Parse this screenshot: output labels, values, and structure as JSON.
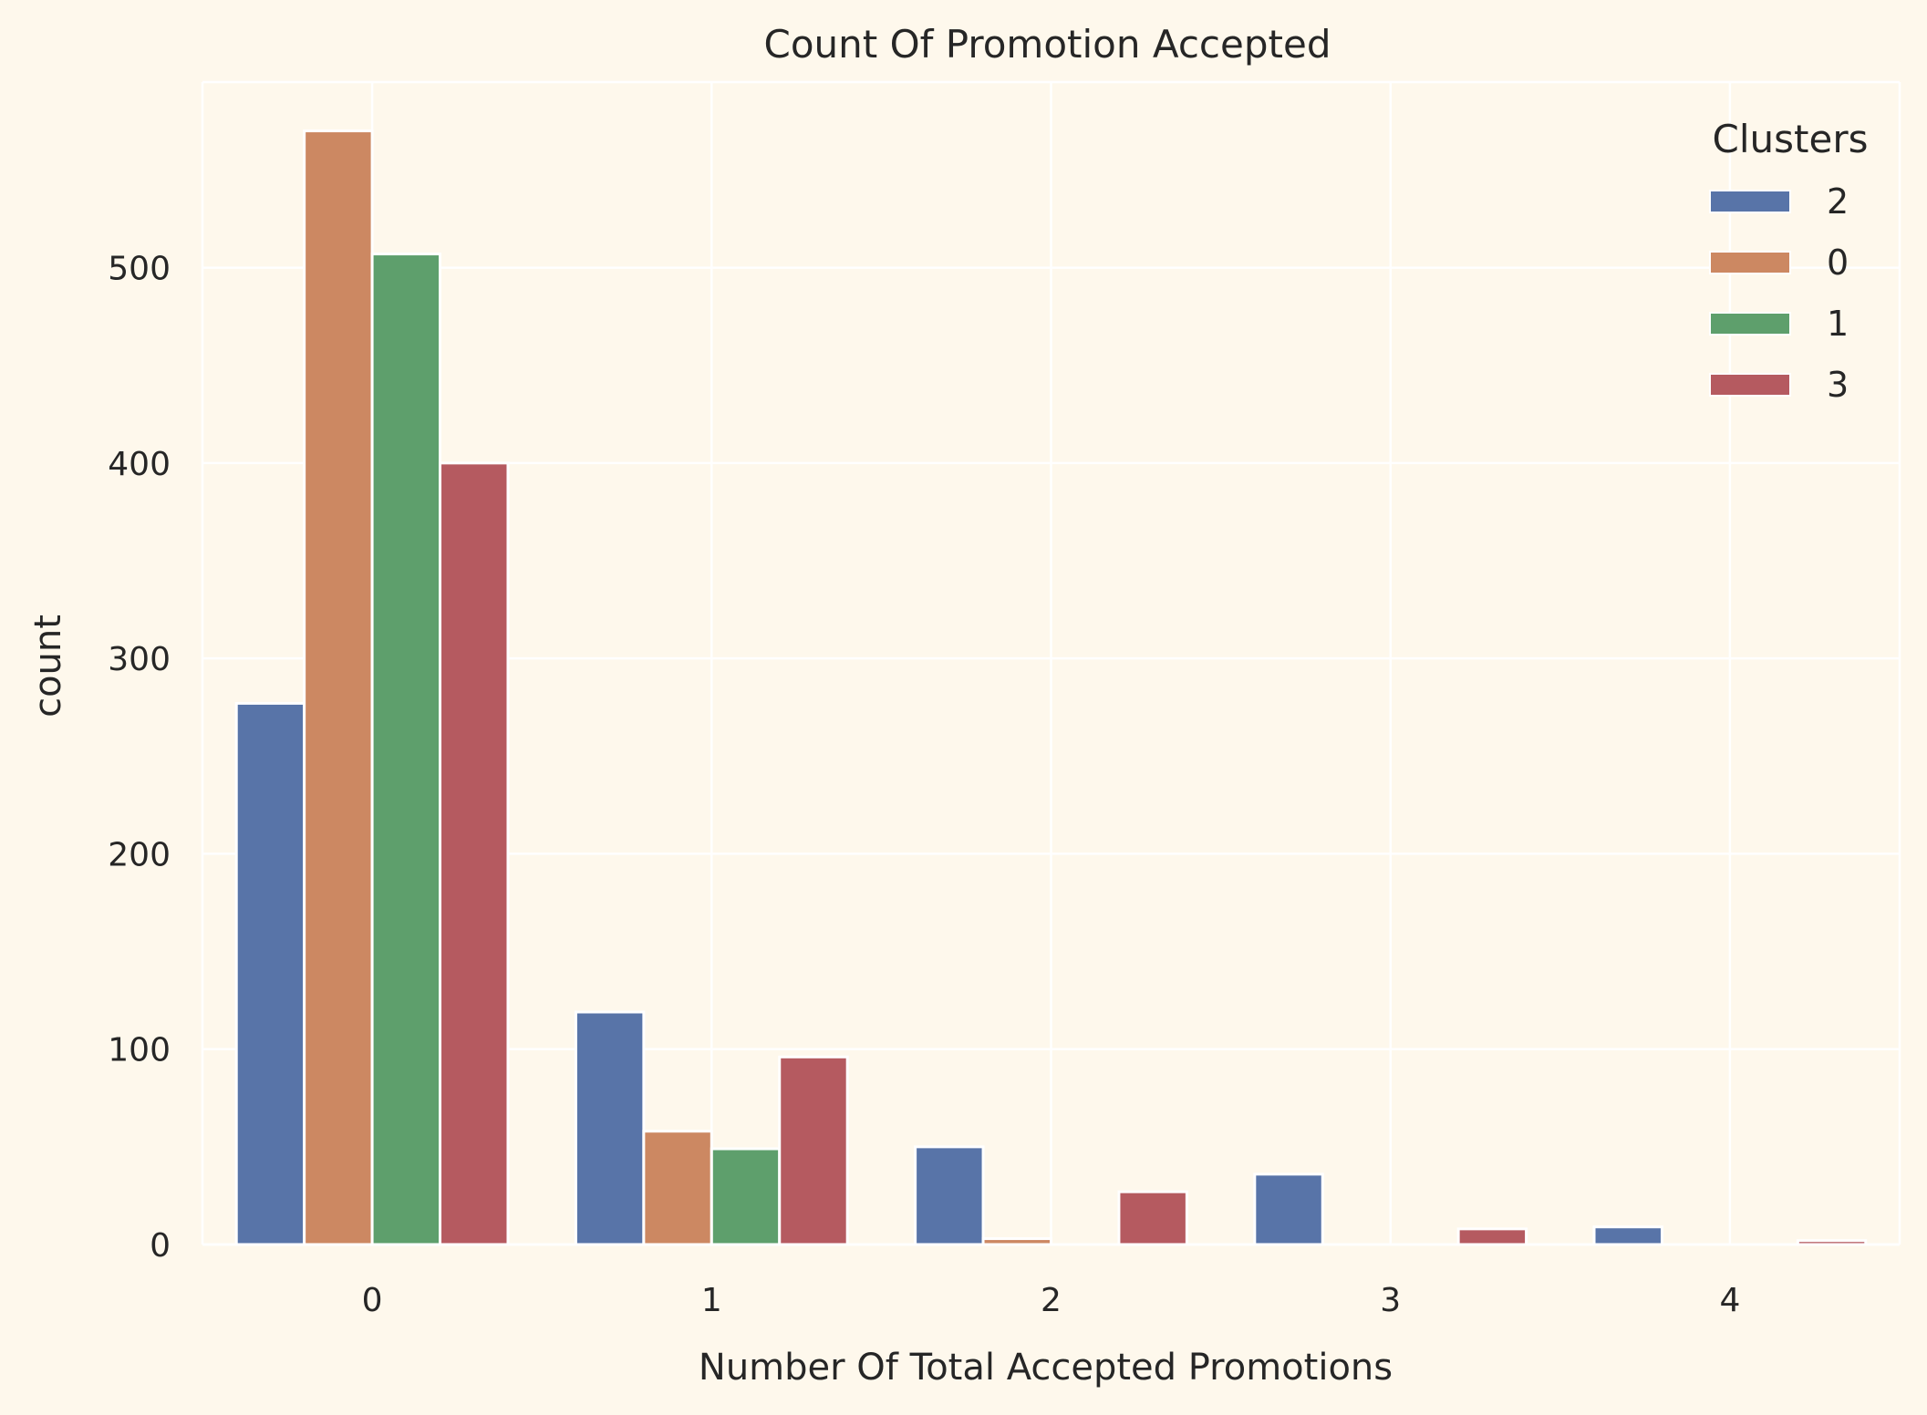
{
  "chart_data": {
    "type": "bar",
    "title": "Count Of Promotion Accepted",
    "xlabel": "Number Of Total Accepted Promotions",
    "ylabel": "count",
    "categories": [
      "0",
      "1",
      "2",
      "3",
      "4"
    ],
    "ylim": [
      0,
      595
    ],
    "yticks": [
      0,
      100,
      200,
      300,
      400,
      500
    ],
    "grid": true,
    "legend": {
      "title": "Clusters",
      "placement": "top-right"
    },
    "series": [
      {
        "name": "2",
        "color": "#5874A8",
        "values": [
          277,
          119,
          50,
          36,
          9
        ]
      },
      {
        "name": "0",
        "color": "#CC8862",
        "values": [
          570,
          58,
          3,
          0,
          0
        ]
      },
      {
        "name": "1",
        "color": "#5E9F6C",
        "values": [
          507,
          49,
          0,
          0,
          0
        ]
      },
      {
        "name": "3",
        "color": "#B55A60",
        "values": [
          400,
          96,
          27,
          8,
          2
        ]
      }
    ]
  }
}
